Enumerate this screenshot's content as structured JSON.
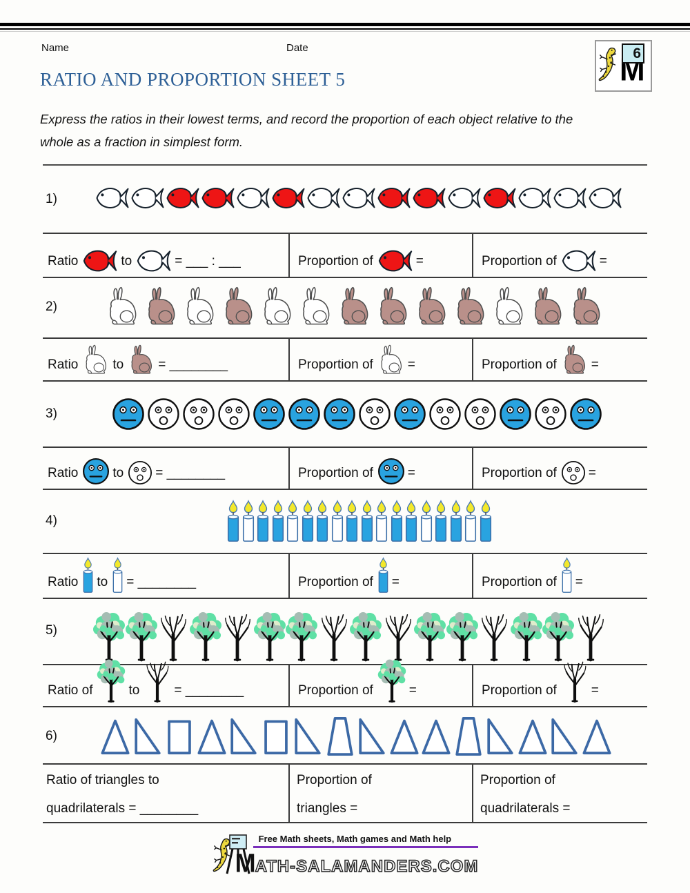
{
  "page": {
    "name_label": "Name",
    "date_label": "Date",
    "title": "RATIO AND PROPORTION SHEET 5",
    "instructions": "Express the ratios in their lowest terms, and record the proportion of each object relative to the\nwhole as a fraction in simplest form.",
    "badge_number": "6",
    "badge_letter": "M"
  },
  "colors": {
    "fish_red": "#ee1515",
    "item_blue": "#29a3e0",
    "rabbit_brown": "#b9908a",
    "tree_green": "#5fe0a5",
    "tree_gray_green": "#a5bdb3",
    "tree_pale": "#dfeccb",
    "shape_blue": "#3c69a6",
    "title_blue": "#2d5f96",
    "purple_rule": "#7a2fbb",
    "candle_yellow": "#f3e82b",
    "white": "#ffffff"
  },
  "questions": [
    {
      "number": "1)",
      "items": [
        "fish-white",
        "fish-white",
        "fish-red",
        "fish-red",
        "fish-white",
        "fish-red",
        "fish-white",
        "fish-white",
        "fish-red",
        "fish-red",
        "fish-white",
        "fish-red",
        "fish-white",
        "fish-white",
        "fish-white"
      ],
      "cells": [
        {
          "tokens": [
            {
              "text": "Ratio"
            },
            {
              "icon": "fish-red"
            },
            {
              "text": "to"
            },
            {
              "icon": "fish-white"
            },
            {
              "text": "= ___ : ___"
            }
          ]
        },
        {
          "tokens": [
            {
              "text": "Proportion of"
            },
            {
              "icon": "fish-red"
            },
            {
              "text": "="
            }
          ]
        },
        {
          "tokens": [
            {
              "text": "Proportion of"
            },
            {
              "icon": "fish-white"
            },
            {
              "text": "="
            }
          ]
        }
      ]
    },
    {
      "number": "2)",
      "items": [
        "rabbit-white",
        "rabbit-brown",
        "rabbit-white",
        "rabbit-brown",
        "rabbit-white",
        "rabbit-white",
        "rabbit-brown",
        "rabbit-brown",
        "rabbit-brown",
        "rabbit-brown",
        "rabbit-white",
        "rabbit-brown",
        "rabbit-brown"
      ],
      "cells": [
        {
          "tokens": [
            {
              "text": "Ratio"
            },
            {
              "icon": "rabbit-white"
            },
            {
              "text": "to"
            },
            {
              "icon": "rabbit-brown"
            },
            {
              "text": "= ________"
            }
          ]
        },
        {
          "tokens": [
            {
              "text": "Proportion of"
            },
            {
              "icon": "rabbit-white"
            },
            {
              "text": "="
            }
          ]
        },
        {
          "tokens": [
            {
              "text": "Proportion of"
            },
            {
              "icon": "rabbit-brown"
            },
            {
              "text": "="
            }
          ]
        }
      ]
    },
    {
      "number": "3)",
      "items": [
        "face-blue",
        "face-white",
        "face-white",
        "face-white",
        "face-blue",
        "face-blue",
        "face-blue",
        "face-white",
        "face-blue",
        "face-white",
        "face-white",
        "face-blue",
        "face-white",
        "face-blue"
      ],
      "cells": [
        {
          "tokens": [
            {
              "text": "Ratio"
            },
            {
              "icon": "face-blue"
            },
            {
              "text": "to"
            },
            {
              "icon": "face-white"
            },
            {
              "text": "= ________"
            }
          ]
        },
        {
          "tokens": [
            {
              "text": "Proportion of"
            },
            {
              "icon": "face-blue"
            },
            {
              "text": "="
            }
          ]
        },
        {
          "tokens": [
            {
              "text": "Proportion of"
            },
            {
              "icon": "face-white"
            },
            {
              "text": "="
            }
          ]
        }
      ]
    },
    {
      "number": "4)",
      "items": [
        "candle-blue",
        "candle-white",
        "candle-blue",
        "candle-blue",
        "candle-white",
        "candle-blue",
        "candle-blue",
        "candle-white",
        "candle-blue",
        "candle-blue",
        "candle-white",
        "candle-blue",
        "candle-blue",
        "candle-white",
        "candle-blue",
        "candle-blue",
        "candle-white",
        "candle-blue"
      ],
      "cells": [
        {
          "tokens": [
            {
              "text": "Ratio"
            },
            {
              "icon": "candle-blue"
            },
            {
              "text": "to"
            },
            {
              "icon": "candle-white"
            },
            {
              "text": "= ________"
            }
          ]
        },
        {
          "tokens": [
            {
              "text": "Proportion of"
            },
            {
              "icon": "candle-blue"
            },
            {
              "text": "="
            }
          ]
        },
        {
          "tokens": [
            {
              "text": "Proportion of"
            },
            {
              "icon": "candle-white"
            },
            {
              "text": "="
            }
          ]
        }
      ]
    },
    {
      "number": "5)",
      "items": [
        "tree-leafy",
        "tree-leafy",
        "tree-bare",
        "tree-leafy",
        "tree-bare",
        "tree-leafy",
        "tree-leafy",
        "tree-bare",
        "tree-leafy",
        "tree-bare",
        "tree-leafy",
        "tree-leafy",
        "tree-bare",
        "tree-leafy",
        "tree-leafy",
        "tree-bare"
      ],
      "cells": [
        {
          "tokens": [
            {
              "text": "Ratio of"
            },
            {
              "icon": "tree-leafy"
            },
            {
              "text": "to"
            },
            {
              "icon": "tree-bare"
            },
            {
              "text": "= ________"
            }
          ]
        },
        {
          "tokens": [
            {
              "text": "Proportion of"
            },
            {
              "icon": "tree-leafy"
            },
            {
              "text": "="
            }
          ]
        },
        {
          "tokens": [
            {
              "text": "Proportion of"
            },
            {
              "icon": "tree-bare"
            },
            {
              "text": "="
            }
          ]
        }
      ]
    },
    {
      "number": "6)",
      "items": [
        "tri-iso",
        "tri-right",
        "rect",
        "tri-iso",
        "tri-right",
        "rect",
        "tri-right",
        "trap",
        "tri-right",
        "tri-iso",
        "tri-iso",
        "trap",
        "tri-right",
        "tri-iso",
        "tri-right",
        "tri-iso"
      ],
      "cells": [
        {
          "tokens": [
            {
              "text": "Ratio of triangles to"
            },
            {
              "br": true
            },
            {
              "text": "quadrilaterals = ________"
            }
          ]
        },
        {
          "tokens": [
            {
              "text": "Proportion of"
            },
            {
              "br": true
            },
            {
              "text": "triangles ="
            }
          ]
        },
        {
          "tokens": [
            {
              "text": "Proportion of"
            },
            {
              "br": true
            },
            {
              "text": "quadrilaterals ="
            }
          ]
        }
      ]
    }
  ],
  "footer": {
    "tagline": "Free Math sheets, Math games and Math help",
    "wordmark_initial": "M",
    "wordmark_rest": "ATH-SALAMANDERS.COM"
  }
}
